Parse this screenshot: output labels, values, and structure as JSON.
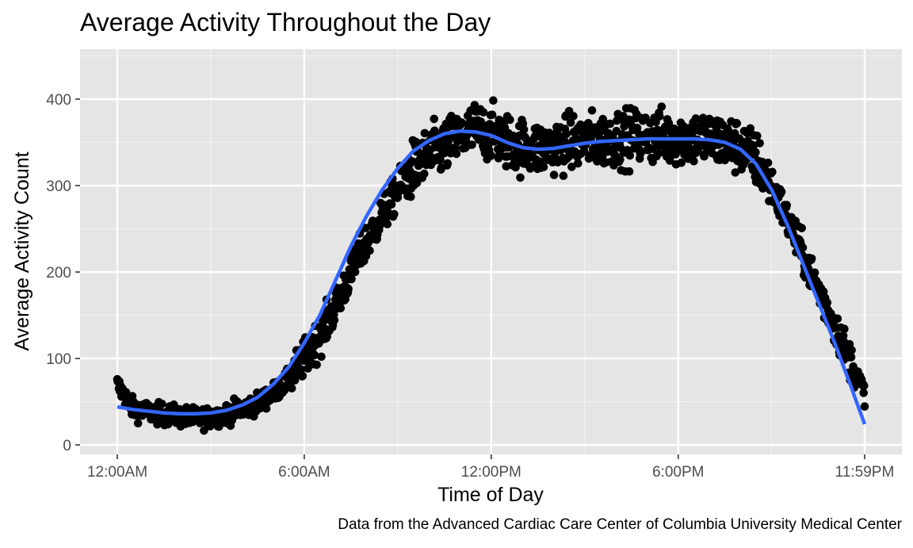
{
  "chart_data": {
    "type": "scatter",
    "title": "Average Activity Throughout the Day",
    "xlabel": "Time of Day",
    "ylabel": "Average Activity Count",
    "caption": "Data from the Advanced Cardiac Care Center of Columbia University Medical Center",
    "x_unit": "minute of day",
    "xlim": [
      0,
      1439
    ],
    "ylim": [
      0,
      440
    ],
    "x_ticks": [
      {
        "value": 0,
        "label": "12:00AM"
      },
      {
        "value": 360,
        "label": "6:00AM"
      },
      {
        "value": 720,
        "label": "12:00PM"
      },
      {
        "value": 1080,
        "label": "6:00PM"
      },
      {
        "value": 1439,
        "label": "11:59PM"
      }
    ],
    "y_ticks": [
      {
        "value": 0,
        "label": "0"
      },
      {
        "value": 100,
        "label": "100"
      },
      {
        "value": 200,
        "label": "200"
      },
      {
        "value": 300,
        "label": "300"
      },
      {
        "value": 400,
        "label": "400"
      }
    ],
    "grid": true,
    "panel_background": "#e5e5e5",
    "point_color": "#000000",
    "smooth_color": "#3366ff",
    "points_note_count": 1440,
    "series": [
      {
        "kind": "points",
        "x": [
          0,
          30,
          60,
          90,
          120,
          150,
          180,
          210,
          240,
          270,
          300,
          330,
          360,
          390,
          420,
          450,
          480,
          510,
          540,
          570,
          600,
          630,
          660,
          690,
          720,
          750,
          780,
          810,
          840,
          870,
          900,
          930,
          960,
          990,
          1020,
          1050,
          1080,
          1110,
          1140,
          1170,
          1200,
          1230,
          1260,
          1290,
          1320,
          1350,
          1380,
          1410,
          1439
        ],
        "y": [
          70,
          42,
          38,
          35,
          33,
          31,
          32,
          36,
          42,
          48,
          60,
          75,
          100,
          125,
          160,
          200,
          235,
          265,
          295,
          320,
          335,
          345,
          355,
          365,
          360,
          352,
          345,
          342,
          345,
          350,
          352,
          352,
          355,
          356,
          357,
          356,
          356,
          355,
          354,
          350,
          345,
          330,
          300,
          260,
          220,
          180,
          140,
          100,
          60
        ]
      },
      {
        "kind": "smooth",
        "x": [
          0,
          30,
          60,
          90,
          120,
          150,
          180,
          210,
          240,
          270,
          300,
          330,
          360,
          390,
          420,
          450,
          480,
          510,
          540,
          570,
          600,
          630,
          660,
          690,
          720,
          750,
          780,
          810,
          840,
          870,
          900,
          930,
          960,
          990,
          1020,
          1050,
          1080,
          1110,
          1140,
          1170,
          1200,
          1230,
          1260,
          1290,
          1320,
          1350,
          1380,
          1410,
          1439
        ],
        "y": [
          44,
          41,
          39,
          37,
          36,
          36,
          37,
          40,
          46,
          55,
          70,
          90,
          118,
          150,
          190,
          230,
          265,
          295,
          320,
          340,
          352,
          360,
          363,
          362,
          358,
          350,
          344,
          342,
          343,
          346,
          349,
          351,
          352,
          353,
          354,
          354,
          354,
          354,
          353,
          350,
          342,
          325,
          295,
          255,
          210,
          165,
          120,
          72,
          24
        ]
      }
    ]
  }
}
